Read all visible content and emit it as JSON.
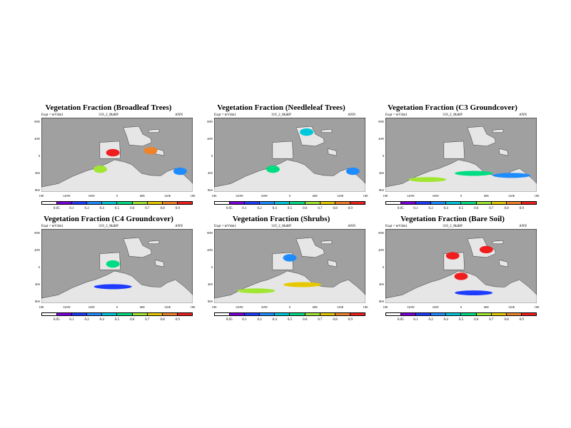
{
  "common": {
    "expt": "Expt = teVdm1",
    "run": "319_2_MaRP",
    "period": "ANN",
    "y_ticks": [
      "80N",
      "40N",
      "0",
      "40S",
      "80S"
    ],
    "x_ticks": [
      "180",
      "120W",
      "60W",
      "0",
      "60E",
      "120E",
      "180"
    ],
    "colorbar_labels": [
      "0.05",
      "0.1",
      "0.2",
      "0.4",
      "0.5",
      "0.6",
      "0.7",
      "0.8",
      "0.9"
    ],
    "colorbar_colors": [
      "#ffffff",
      "#7a00dc",
      "#1e3cff",
      "#1e8cff",
      "#00c8dc",
      "#00dc82",
      "#a0e632",
      "#e6c800",
      "#f08228",
      "#f01e1e"
    ],
    "ocean_color": "#a0a0a0",
    "land_color": "#e6e6e6"
  },
  "chart_data": [
    {
      "type": "heatmap",
      "title": "Vegetation Fraction (Broadleaf Trees)",
      "variable": "Broadleaf Trees",
      "highlights": [
        {
          "lon": -10,
          "lat": 5,
          "value": 0.9
        },
        {
          "lon": 80,
          "lat": 10,
          "value": 0.85
        },
        {
          "lon": -40,
          "lat": -35,
          "value": 0.6
        },
        {
          "lon": 150,
          "lat": -40,
          "value": 0.2
        }
      ]
    },
    {
      "type": "heatmap",
      "title": "Vegetation Fraction (Needleleaf Trees)",
      "variable": "Needleleaf Trees",
      "highlights": [
        {
          "lon": 40,
          "lat": 55,
          "value": 0.4
        },
        {
          "lon": -40,
          "lat": -35,
          "value": 0.5
        },
        {
          "lon": 150,
          "lat": -40,
          "value": 0.3
        }
      ]
    },
    {
      "type": "heatmap",
      "title": "Vegetation Fraction (C3 Groundcover)",
      "variable": "C3 Groundcover",
      "highlights": [
        {
          "lon": 30,
          "lat": -45,
          "value": 0.5
        },
        {
          "lon": 120,
          "lat": -50,
          "value": 0.3
        },
        {
          "lon": -80,
          "lat": -60,
          "value": 0.6
        }
      ]
    },
    {
      "type": "heatmap",
      "title": "Vegetation Fraction (C4 Groundcover)",
      "variable": "C4 Groundcover",
      "highlights": [
        {
          "lon": -10,
          "lat": 5,
          "value": 0.5
        },
        {
          "lon": -10,
          "lat": -50,
          "value": 0.1
        }
      ]
    },
    {
      "type": "heatmap",
      "title": "Vegetation Fraction (Shrubs)",
      "variable": "Shrubs",
      "highlights": [
        {
          "lon": 30,
          "lat": -45,
          "value": 0.7
        },
        {
          "lon": -80,
          "lat": -60,
          "value": 0.6
        },
        {
          "lon": 0,
          "lat": 20,
          "value": 0.2
        }
      ]
    },
    {
      "type": "heatmap",
      "title": "Vegetation Fraction (Bare Soil)",
      "variable": "Bare Soil",
      "highlights": [
        {
          "lon": -20,
          "lat": 25,
          "value": 0.95
        },
        {
          "lon": 0,
          "lat": -25,
          "value": 0.95
        },
        {
          "lon": 60,
          "lat": 40,
          "value": 0.95
        },
        {
          "lon": 30,
          "lat": -65,
          "value": 0.1
        }
      ]
    }
  ]
}
